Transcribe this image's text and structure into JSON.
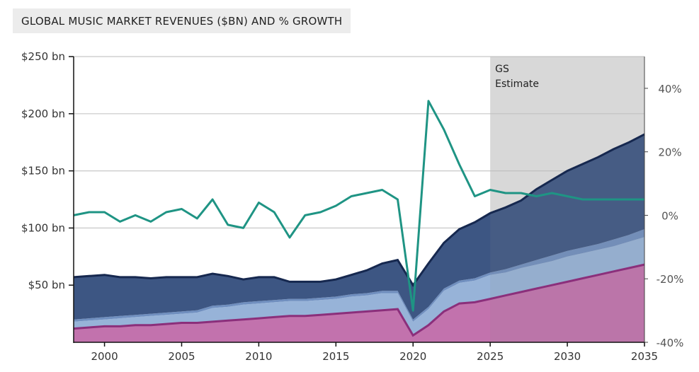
{
  "chart_data": {
    "type": "area",
    "title": "GLOBAL MUSIC MARKET REVENUES ($BN) AND % GROWTH",
    "x": [
      1998,
      1999,
      2000,
      2001,
      2002,
      2003,
      2004,
      2005,
      2006,
      2007,
      2008,
      2009,
      2010,
      2011,
      2012,
      2013,
      2014,
      2015,
      2016,
      2017,
      2018,
      2019,
      2020,
      2021,
      2022,
      2023,
      2024,
      2025,
      2026,
      2027,
      2028,
      2029,
      2030,
      2031,
      2032,
      2033,
      2034,
      2035
    ],
    "stack_series": [
      {
        "name": "",
        "color": "#c272ad",
        "values": [
          12,
          13,
          14,
          14,
          15,
          15,
          16,
          17,
          17,
          18,
          19,
          20,
          21,
          22,
          23,
          23,
          24,
          25,
          26,
          27,
          28,
          29,
          6,
          15,
          27,
          34,
          35,
          38,
          41,
          44,
          47,
          50,
          53,
          56,
          59,
          62,
          65,
          68
        ]
      },
      {
        "name": "",
        "color": "#97b3d8",
        "values": [
          6,
          6,
          6,
          7,
          7,
          8,
          8,
          8,
          9,
          12,
          12,
          13,
          13,
          13,
          13,
          13,
          13,
          13,
          14,
          14,
          15,
          14,
          12,
          14,
          18,
          18,
          19,
          21,
          20,
          21,
          21,
          21,
          22,
          22,
          22,
          22,
          23,
          24
        ]
      },
      {
        "name": "",
        "color": "#708fbf",
        "values": [
          2,
          2,
          2,
          2,
          2,
          2,
          2,
          2,
          2,
          2,
          2,
          2,
          2,
          2,
          2,
          2,
          2,
          2,
          2,
          2,
          2,
          2,
          2,
          2,
          2,
          2,
          2,
          2,
          3,
          3,
          4,
          5,
          5,
          5,
          5,
          6,
          6,
          7
        ]
      },
      {
        "name": "",
        "color": "#3d5683",
        "values": [
          37,
          37,
          37,
          34,
          33,
          31,
          31,
          30,
          29,
          28,
          25,
          20,
          21,
          20,
          15,
          15,
          14,
          15,
          17,
          20,
          24,
          27,
          30,
          38,
          40,
          45,
          49,
          52,
          54,
          56,
          62,
          66,
          70,
          73,
          76,
          79,
          81,
          83
        ]
      }
    ],
    "growth": {
      "name": "",
      "color": "#1f9484",
      "values": [
        0,
        1,
        1,
        -2,
        0,
        -2,
        1,
        2,
        -1,
        5,
        -3,
        -4,
        4,
        1,
        -7,
        0,
        1,
        3,
        6,
        7,
        8,
        5,
        -30,
        36,
        27,
        16,
        6,
        8,
        7,
        7,
        6,
        7,
        6,
        5,
        5,
        5,
        5,
        5
      ]
    },
    "estimate_start": 2025,
    "estimate_label": [
      "GS",
      "Estimate"
    ],
    "xlim": [
      1998,
      2035
    ],
    "ylim_left": [
      0,
      250
    ],
    "ylim_right": [
      -40,
      50
    ],
    "x_ticks": [
      2000,
      2005,
      2010,
      2015,
      2020,
      2025,
      2030,
      2035
    ],
    "y_ticks_left": [
      {
        "value": 50,
        "label": "$50 bn"
      },
      {
        "value": 100,
        "label": "$100 bn"
      },
      {
        "value": 150,
        "label": "$150 bn"
      },
      {
        "value": 200,
        "label": "$200 bn"
      },
      {
        "value": 250,
        "label": "$250 bn"
      }
    ],
    "y_ticks_right": [
      {
        "value": 40,
        "label": "40%"
      },
      {
        "value": 20,
        "label": "20%"
      },
      {
        "value": 0,
        "label": "0%"
      },
      {
        "value": -20,
        "label": "-20%"
      },
      {
        "value": -40,
        "label": "-40%"
      }
    ],
    "grid": true,
    "total_line_color": "#16284f",
    "recorded_music_line_color": "#8b2f7b"
  }
}
